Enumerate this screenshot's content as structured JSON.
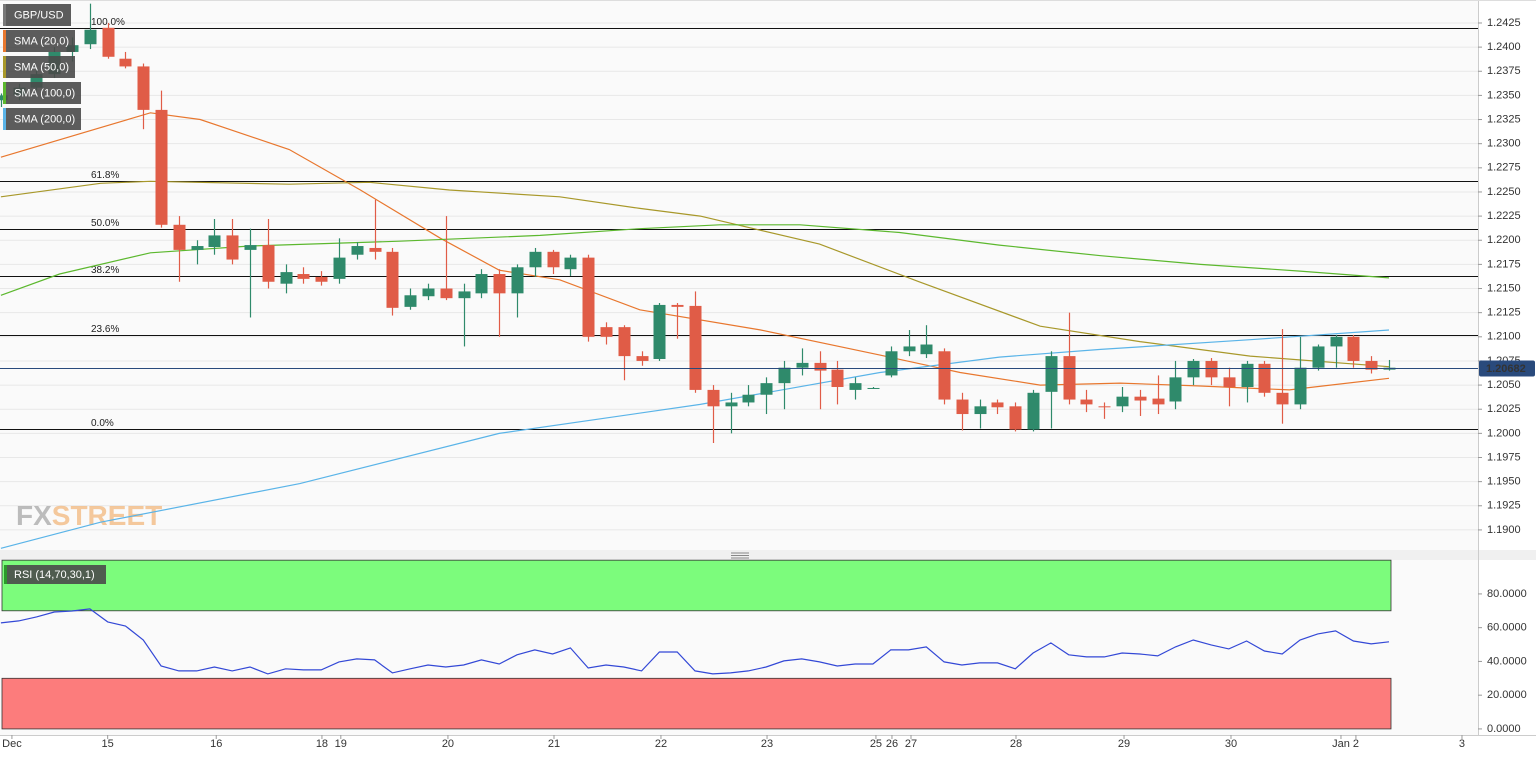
{
  "chart_data": [
    {
      "type": "candlestick",
      "title": "GBP/USD",
      "up_color": "#2f8a6b",
      "down_color": "#e05c47",
      "open": [
        1.2345,
        1.235,
        1.2358,
        1.2372,
        1.2395,
        1.2403,
        1.242,
        1.2388,
        1.238,
        1.2335,
        1.2216,
        1.219,
        1.2193,
        1.2205,
        1.219,
        1.2195,
        1.2155,
        1.2165,
        1.2162,
        1.216,
        1.2185,
        1.2192,
        1.2188,
        1.2131,
        1.2142,
        1.215,
        1.214,
        1.2145,
        1.2165,
        1.2145,
        1.2172,
        1.2188,
        1.217,
        1.2182,
        1.211,
        1.211,
        1.208,
        1.2077,
        1.2133,
        1.2132,
        1.2045,
        1.2028,
        1.2032,
        1.204,
        1.2052,
        1.2068,
        1.2073,
        1.2066,
        1.2045,
        1.2047,
        1.206,
        1.2085,
        1.2082,
        1.2085,
        1.2035,
        1.202,
        1.2032,
        1.2028,
        1.2004,
        1.2043,
        1.208,
        1.2035,
        1.2028,
        1.2028,
        1.2038,
        1.2036,
        1.2033,
        1.2058,
        1.2075,
        1.2058,
        1.2048,
        1.2072,
        1.2042,
        1.203,
        1.2068,
        1.209,
        1.21,
        1.2075,
        1.2066
      ],
      "high": [
        1.2352,
        1.2362,
        1.2378,
        1.24,
        1.241,
        1.2445,
        1.2425,
        1.2395,
        1.2383,
        1.2355,
        1.2225,
        1.22,
        1.2222,
        1.2222,
        1.2212,
        1.2222,
        1.2175,
        1.2172,
        1.2168,
        1.2202,
        1.2198,
        1.2242,
        1.2192,
        1.215,
        1.2155,
        1.2225,
        1.2155,
        1.217,
        1.217,
        1.2175,
        1.2192,
        1.219,
        1.2185,
        1.2185,
        1.2115,
        1.2112,
        1.2085,
        1.2135,
        1.2135,
        1.2147,
        1.205,
        1.2042,
        1.205,
        1.2058,
        1.2075,
        1.2088,
        1.2085,
        1.2075,
        1.2058,
        1.2048,
        1.209,
        1.2107,
        1.2112,
        1.2088,
        1.2042,
        1.2035,
        1.2035,
        1.2032,
        1.2045,
        1.2085,
        1.2125,
        1.2045,
        1.2032,
        1.2048,
        1.2045,
        1.206,
        1.2075,
        1.2077,
        1.2078,
        1.2068,
        1.2075,
        1.2075,
        1.2108,
        1.21,
        1.2092,
        1.2102,
        1.2102,
        1.208,
        1.2076
      ],
      "low": [
        1.2338,
        1.2345,
        1.2355,
        1.2368,
        1.2385,
        1.2398,
        1.2388,
        1.2378,
        1.2315,
        1.2213,
        1.2157,
        1.2175,
        1.2185,
        1.2175,
        1.212,
        1.215,
        1.2145,
        1.2155,
        1.2153,
        1.2155,
        1.218,
        1.218,
        1.2122,
        1.2128,
        1.2138,
        1.2138,
        1.209,
        1.214,
        1.21,
        1.212,
        1.2162,
        1.2165,
        1.2163,
        1.2095,
        1.2092,
        1.2055,
        1.207,
        1.2075,
        1.2098,
        1.2042,
        1.199,
        1.2,
        1.2028,
        1.202,
        1.2025,
        1.206,
        1.2025,
        1.203,
        1.2035,
        1.2046,
        1.2058,
        1.208,
        1.2078,
        1.203,
        1.2003,
        1.2005,
        1.202,
        1.2002,
        1.2002,
        1.2005,
        1.203,
        1.2022,
        1.2015,
        1.2022,
        1.2018,
        1.202,
        1.2025,
        1.205,
        1.205,
        1.2028,
        1.2032,
        1.2038,
        1.201,
        1.2025,
        1.2065,
        1.2068,
        1.2068,
        1.2062,
        1.2065
      ],
      "close": [
        1.235,
        1.2358,
        1.2372,
        1.2395,
        1.2402,
        1.2418,
        1.239,
        1.238,
        1.2335,
        1.2216,
        1.219,
        1.2194,
        1.2205,
        1.218,
        1.2195,
        1.2157,
        1.2167,
        1.216,
        1.2157,
        1.2182,
        1.2194,
        1.2188,
        1.213,
        1.2143,
        1.215,
        1.214,
        1.2147,
        1.2165,
        1.2145,
        1.2172,
        1.2188,
        1.2172,
        1.2182,
        1.21,
        1.21,
        1.208,
        1.2075,
        1.2133,
        1.2131,
        1.2045,
        1.2028,
        1.2032,
        1.204,
        1.2052,
        1.2068,
        1.2073,
        1.2065,
        1.2048,
        1.2052,
        1.2047,
        1.2085,
        1.209,
        1.2092,
        1.2035,
        1.202,
        1.2028,
        1.2027,
        1.2004,
        1.2042,
        1.208,
        1.2035,
        1.203,
        1.2027,
        1.2038,
        1.2034,
        1.203,
        1.2058,
        1.2075,
        1.2058,
        1.2048,
        1.2072,
        1.2042,
        1.203,
        1.2068,
        1.209,
        1.21,
        1.2075,
        1.2066,
        1.2068
      ],
      "series": [
        {
          "name": "SMA (20,0)",
          "color": "#e8772e",
          "x": [
            0,
            8.4,
            11.2,
            16.2,
            20.2,
            24.7,
            28.0,
            31.4,
            35.9,
            42.7,
            49.4,
            53.9,
            58.4,
            62.9,
            67.4,
            72.4,
            78.0
          ],
          "values": [
            1.2286,
            1.2332,
            1.2325,
            1.2294,
            1.2252,
            1.2202,
            1.2169,
            1.2159,
            1.2128,
            1.2107,
            1.2081,
            1.2063,
            1.205,
            1.2052,
            1.2049,
            1.2045,
            1.2057
          ]
        },
        {
          "name": "SMA (50,0)",
          "color": "#a8982a",
          "x": [
            0,
            5.6,
            8.4,
            16.2,
            20.7,
            25.2,
            31.4,
            35.9,
            39.3,
            46.0,
            51.6,
            58.4,
            64.0,
            70.2,
            78.0
          ],
          "values": [
            1.2245,
            1.2259,
            1.2261,
            1.2258,
            1.226,
            1.2252,
            1.2245,
            1.2233,
            1.2225,
            1.2196,
            1.2157,
            1.2111,
            1.2095,
            1.208,
            1.2069
          ]
        },
        {
          "name": "SMA (100,0)",
          "color": "#5cb82e",
          "x": [
            0,
            3.3,
            8.4,
            14.0,
            22.4,
            30.3,
            35.9,
            40.4,
            44.9,
            50.5,
            56.1,
            61.8,
            67.4,
            73.0,
            78.0
          ],
          "values": [
            1.2143,
            1.2165,
            1.2187,
            1.2194,
            1.2199,
            1.2205,
            1.2212,
            1.2216,
            1.2216,
            1.2208,
            1.2195,
            1.2184,
            1.2175,
            1.2168,
            1.2161
          ]
        },
        {
          "name": "SMA (200,0)",
          "color": "#5ab4e8",
          "x": [
            0,
            5.6,
            16.8,
            28.0,
            39.3,
            49.4,
            56.1,
            61.8,
            70.2,
            78.0
          ],
          "values": [
            1.1881,
            1.1908,
            1.1948,
            1.2,
            1.203,
            1.2063,
            1.2079,
            1.2087,
            1.2097,
            1.2107
          ]
        }
      ],
      "fib_levels": [
        {
          "label": "100.0%",
          "value": 1.242
        },
        {
          "label": "61.8%",
          "value": 1.2261
        },
        {
          "label": "50.0%",
          "value": 1.2212
        },
        {
          "label": "38.2%",
          "value": 1.2163
        },
        {
          "label": "23.6%",
          "value": 1.2102
        },
        {
          "label": "0.0%",
          "value": 1.2004
        }
      ],
      "last_price": 1.20682,
      "last_price_color": "#294a7c",
      "watermark": [
        "FX",
        "STREET"
      ],
      "xlim": [
        -0.05,
        83
      ],
      "ylim": [
        1.18792,
        1.24488
      ],
      "yticks": [
        {
          "value": 1.19,
          "label": "1.1900"
        },
        1.1925,
        {
          "value": 1.195,
          "label": "1.1950"
        },
        1.1975,
        {
          "value": 1.2,
          "label": "1.2000"
        },
        1.2025,
        {
          "value": 1.205,
          "label": "1.2050"
        },
        1.2075,
        {
          "value": 1.21,
          "label": "1.2100"
        },
        1.2125,
        {
          "value": 1.215,
          "label": "1.2150"
        },
        1.2175,
        {
          "value": 1.22,
          "label": "1.2200"
        },
        1.2225,
        {
          "value": 1.225,
          "label": "1.2250"
        },
        1.2275,
        {
          "value": 1.23,
          "label": "1.2300"
        },
        1.2325,
        {
          "value": 1.235,
          "label": "1.2350"
        },
        1.2375,
        {
          "value": 1.24,
          "label": "1.2400"
        },
        1.2425
      ],
      "grid": true
    },
    {
      "type": "line",
      "title": "RSI (14,70,30,1)",
      "color": "#3348d6",
      "values": [
        62.8,
        64,
        66.4,
        69.3,
        69.9,
        71.1,
        63.4,
        61,
        52.7,
        37.3,
        34.4,
        34.4,
        36.7,
        34.4,
        36.7,
        32.6,
        35.6,
        35,
        35,
        39.7,
        41.5,
        40.9,
        33.2,
        35.6,
        37.9,
        36.7,
        37.9,
        40.9,
        38.5,
        43.9,
        46.8,
        44.4,
        48,
        36.1,
        37.9,
        36.7,
        34.4,
        45.6,
        45.6,
        34.4,
        32.6,
        33.2,
        34.4,
        36.7,
        40.3,
        41.5,
        39.7,
        37.3,
        38.5,
        38.5,
        46.8,
        46.8,
        48.6,
        39.7,
        37.9,
        39.1,
        39.1,
        35.6,
        45,
        51,
        43.9,
        42.7,
        42.7,
        45,
        44.4,
        43.3,
        48.6,
        52.7,
        49.8,
        47.4,
        52.1,
        46.2,
        44.4,
        52.7,
        56.3,
        58.1,
        52.1,
        50.4,
        51.6
      ],
      "zones": [
        {
          "from": 70,
          "to": 100,
          "color": "#7cfc7c"
        },
        {
          "from": 0,
          "to": 30,
          "color": "#fc7c7c"
        }
      ],
      "xlim": [
        -0.05,
        83
      ],
      "ylim": [
        -3.6,
        100.1
      ],
      "yticks": [
        {
          "value": 0,
          "label": "0.0000"
        },
        {
          "value": 20,
          "label": "20.0000"
        },
        {
          "value": 40,
          "label": "40.0000"
        },
        {
          "value": 60,
          "label": "60.0000"
        },
        {
          "value": 80,
          "label": "80.0000"
        }
      ],
      "xticks": [
        {
          "value": 0.62,
          "label": "Dec"
        },
        {
          "value": 6,
          "label": "15"
        },
        {
          "value": 12.1,
          "label": "16"
        },
        {
          "value": 18.04,
          "label": "18"
        },
        {
          "value": 19.1,
          "label": "19"
        },
        {
          "value": 25.12,
          "label": "20"
        },
        {
          "value": 31.08,
          "label": "21"
        },
        {
          "value": 37.09,
          "label": "22"
        },
        {
          "value": 43.05,
          "label": "23"
        },
        {
          "value": 49.17,
          "label": "25"
        },
        {
          "value": 50.07,
          "label": "26"
        },
        {
          "value": 51.14,
          "label": "27"
        },
        {
          "value": 57.04,
          "label": "28"
        },
        {
          "value": 63.11,
          "label": "29"
        },
        {
          "value": 69.12,
          "label": "30"
        },
        {
          "value": 75.3,
          "label": "Jan"
        },
        {
          "value": 76.14,
          "label": "2"
        },
        {
          "value": 82.1,
          "label": "3"
        }
      ]
    }
  ]
}
